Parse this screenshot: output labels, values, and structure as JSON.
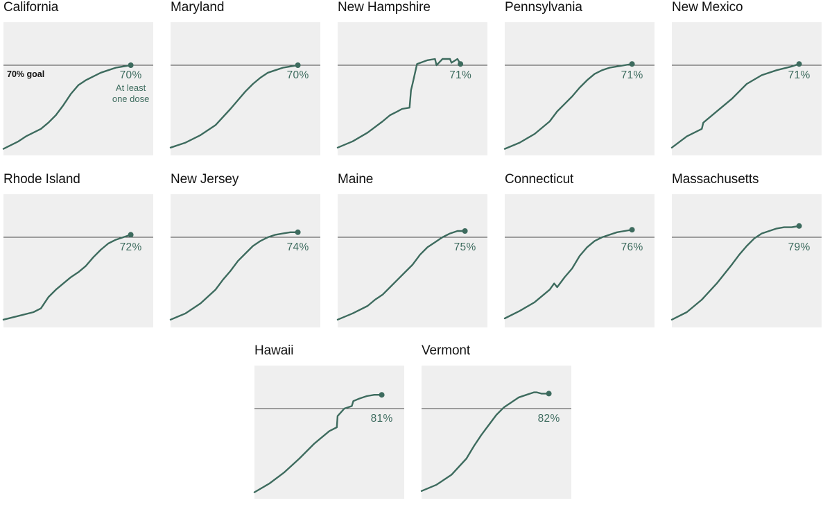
{
  "chart_data": {
    "type": "line",
    "description_labels": {
      "goal_label": "70% goal",
      "note_line1": "At least",
      "note_line2": "one dose"
    },
    "y_axis": {
      "unit": "percent of adults with at least one dose",
      "ylim": [
        0,
        100
      ],
      "goal_value": 70
    },
    "x_axis": {
      "xlim": [
        0,
        1
      ]
    },
    "series": [
      {
        "name": "California",
        "final_label": "70%",
        "final_value": 70,
        "x": [
          0,
          0.05,
          0.1,
          0.15,
          0.2,
          0.25,
          0.3,
          0.35,
          0.4,
          0.45,
          0.5,
          0.55,
          0.6,
          0.65,
          0.7,
          0.75,
          0.8,
          0.85
        ],
        "y": [
          3,
          6,
          9,
          13,
          16,
          19,
          24,
          30,
          38,
          47,
          54,
          58,
          61,
          64,
          66,
          68,
          69,
          70
        ]
      },
      {
        "name": "Maryland",
        "final_label": "70%",
        "final_value": 70,
        "x": [
          0,
          0.1,
          0.2,
          0.3,
          0.4,
          0.45,
          0.5,
          0.55,
          0.6,
          0.65,
          0.7,
          0.75,
          0.8,
          0.85
        ],
        "y": [
          4,
          8,
          14,
          22,
          35,
          42,
          49,
          55,
          60,
          64,
          66,
          68,
          69,
          70
        ]
      },
      {
        "name": "New Hampshire",
        "final_label": "71%",
        "final_value": 71,
        "x": [
          0,
          0.1,
          0.2,
          0.3,
          0.35,
          0.4,
          0.43,
          0.48,
          0.49,
          0.5,
          0.53,
          0.6,
          0.65,
          0.66,
          0.7,
          0.75,
          0.76,
          0.8,
          0.82
        ],
        "y": [
          4,
          9,
          16,
          25,
          30,
          33,
          35,
          36,
          50,
          55,
          71,
          74,
          75,
          70,
          75,
          75,
          72,
          75,
          71
        ]
      },
      {
        "name": "Pennsylvania",
        "final_label": "71%",
        "final_value": 71,
        "x": [
          0,
          0.1,
          0.2,
          0.3,
          0.35,
          0.4,
          0.45,
          0.5,
          0.55,
          0.6,
          0.65,
          0.7,
          0.75,
          0.8,
          0.85
        ],
        "y": [
          3,
          8,
          15,
          25,
          33,
          39,
          45,
          52,
          58,
          63,
          66,
          68,
          69,
          70,
          71
        ]
      },
      {
        "name": "New Mexico",
        "final_label": "71%",
        "final_value": 71,
        "x": [
          0,
          0.1,
          0.2,
          0.21,
          0.3,
          0.4,
          0.5,
          0.6,
          0.7,
          0.8,
          0.85
        ],
        "y": [
          4,
          13,
          19,
          24,
          33,
          43,
          55,
          62,
          66,
          69,
          71
        ]
      },
      {
        "name": "Rhode Island",
        "final_label": "72%",
        "final_value": 72,
        "x": [
          0,
          0.1,
          0.2,
          0.25,
          0.3,
          0.35,
          0.4,
          0.45,
          0.5,
          0.55,
          0.6,
          0.65,
          0.7,
          0.75,
          0.8,
          0.85
        ],
        "y": [
          4,
          7,
          10,
          13,
          22,
          28,
          33,
          38,
          42,
          47,
          54,
          60,
          65,
          68,
          70,
          72
        ]
      },
      {
        "name": "New Jersey",
        "final_label": "74%",
        "final_value": 74,
        "x": [
          0,
          0.1,
          0.2,
          0.3,
          0.35,
          0.4,
          0.45,
          0.5,
          0.55,
          0.6,
          0.65,
          0.7,
          0.75,
          0.8,
          0.85
        ],
        "y": [
          4,
          9,
          17,
          28,
          36,
          43,
          51,
          57,
          63,
          67,
          70,
          72,
          73,
          74,
          74
        ]
      },
      {
        "name": "Maine",
        "final_label": "75%",
        "final_value": 75,
        "x": [
          0,
          0.1,
          0.2,
          0.25,
          0.3,
          0.35,
          0.4,
          0.45,
          0.5,
          0.55,
          0.6,
          0.65,
          0.7,
          0.75,
          0.8,
          0.85
        ],
        "y": [
          4,
          9,
          15,
          20,
          24,
          30,
          36,
          42,
          48,
          56,
          62,
          66,
          70,
          73,
          75,
          75
        ]
      },
      {
        "name": "Connecticut",
        "final_label": "76%",
        "final_value": 76,
        "x": [
          0,
          0.1,
          0.2,
          0.3,
          0.33,
          0.35,
          0.4,
          0.45,
          0.5,
          0.55,
          0.6,
          0.65,
          0.7,
          0.75,
          0.8,
          0.85
        ],
        "y": [
          5,
          11,
          18,
          28,
          33,
          30,
          38,
          45,
          55,
          62,
          67,
          70,
          72,
          74,
          75,
          76
        ]
      },
      {
        "name": "Massachusetts",
        "final_label": "79%",
        "final_value": 79,
        "x": [
          0,
          0.1,
          0.2,
          0.3,
          0.4,
          0.45,
          0.5,
          0.55,
          0.6,
          0.65,
          0.7,
          0.75,
          0.8,
          0.85
        ],
        "y": [
          4,
          10,
          20,
          33,
          48,
          56,
          63,
          69,
          73,
          75,
          77,
          78,
          78,
          79
        ]
      },
      {
        "name": "Hawaii",
        "final_label": "81%",
        "final_value": 81,
        "x": [
          0,
          0.1,
          0.2,
          0.3,
          0.4,
          0.5,
          0.55,
          0.555,
          0.6,
          0.65,
          0.66,
          0.7,
          0.75,
          0.8,
          0.85
        ],
        "y": [
          3,
          10,
          19,
          30,
          42,
          52,
          55,
          64,
          70,
          72,
          76,
          78,
          80,
          81,
          81
        ]
      },
      {
        "name": "Vermont",
        "final_label": "82%",
        "final_value": 82,
        "x": [
          0,
          0.1,
          0.2,
          0.3,
          0.35,
          0.4,
          0.45,
          0.5,
          0.55,
          0.6,
          0.65,
          0.7,
          0.75,
          0.77,
          0.8,
          0.85
        ],
        "y": [
          4,
          9,
          17,
          30,
          40,
          49,
          57,
          65,
          71,
          75,
          79,
          81,
          83,
          83,
          82,
          82
        ]
      }
    ]
  }
}
